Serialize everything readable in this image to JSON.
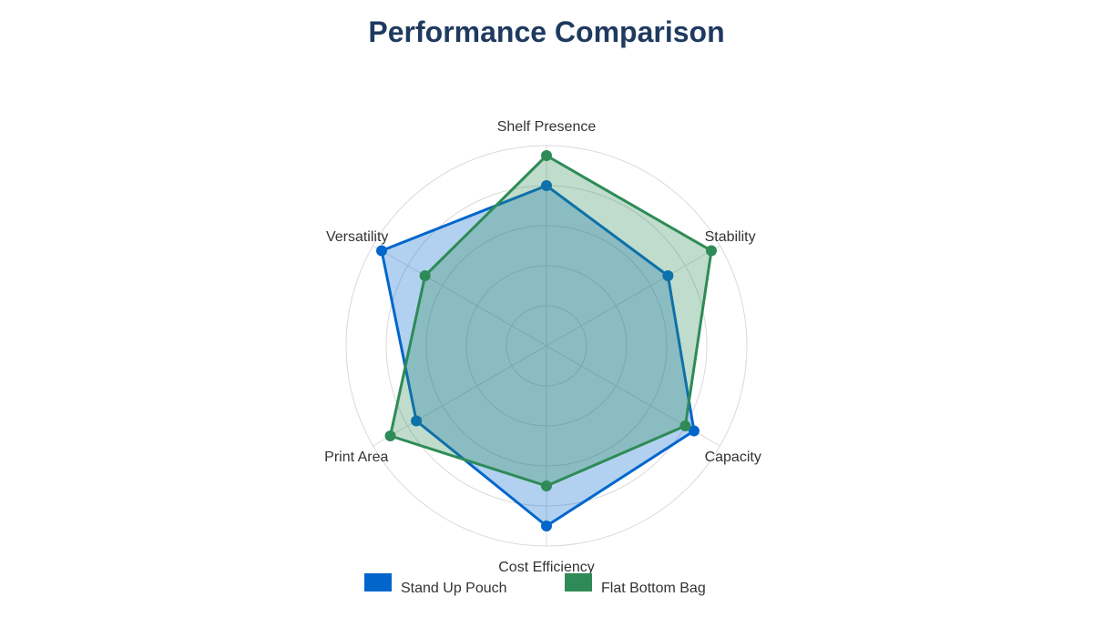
{
  "chart_data": {
    "type": "radar",
    "title": "Performance Comparison",
    "axes": [
      "Shelf Presence",
      "Stability",
      "Capacity",
      "Cost Efficiency",
      "Print Area",
      "Versatility"
    ],
    "rmax": 10,
    "grid_rings": [
      2,
      4,
      6,
      8,
      10
    ],
    "grid": true,
    "legend_position": "bottom",
    "series": [
      {
        "name": "Stand Up Pouch",
        "values": [
          8,
          7,
          8.5,
          9,
          7.5,
          9.5
        ],
        "color": "#0066cc",
        "fill": "rgba(0, 102, 204, 0.3)"
      },
      {
        "name": "Flat Bottom Bag",
        "values": [
          9.5,
          9.5,
          8,
          7,
          9,
          7
        ],
        "color": "#2e8b57",
        "fill": "rgba(46, 139, 87, 0.3)"
      }
    ]
  }
}
